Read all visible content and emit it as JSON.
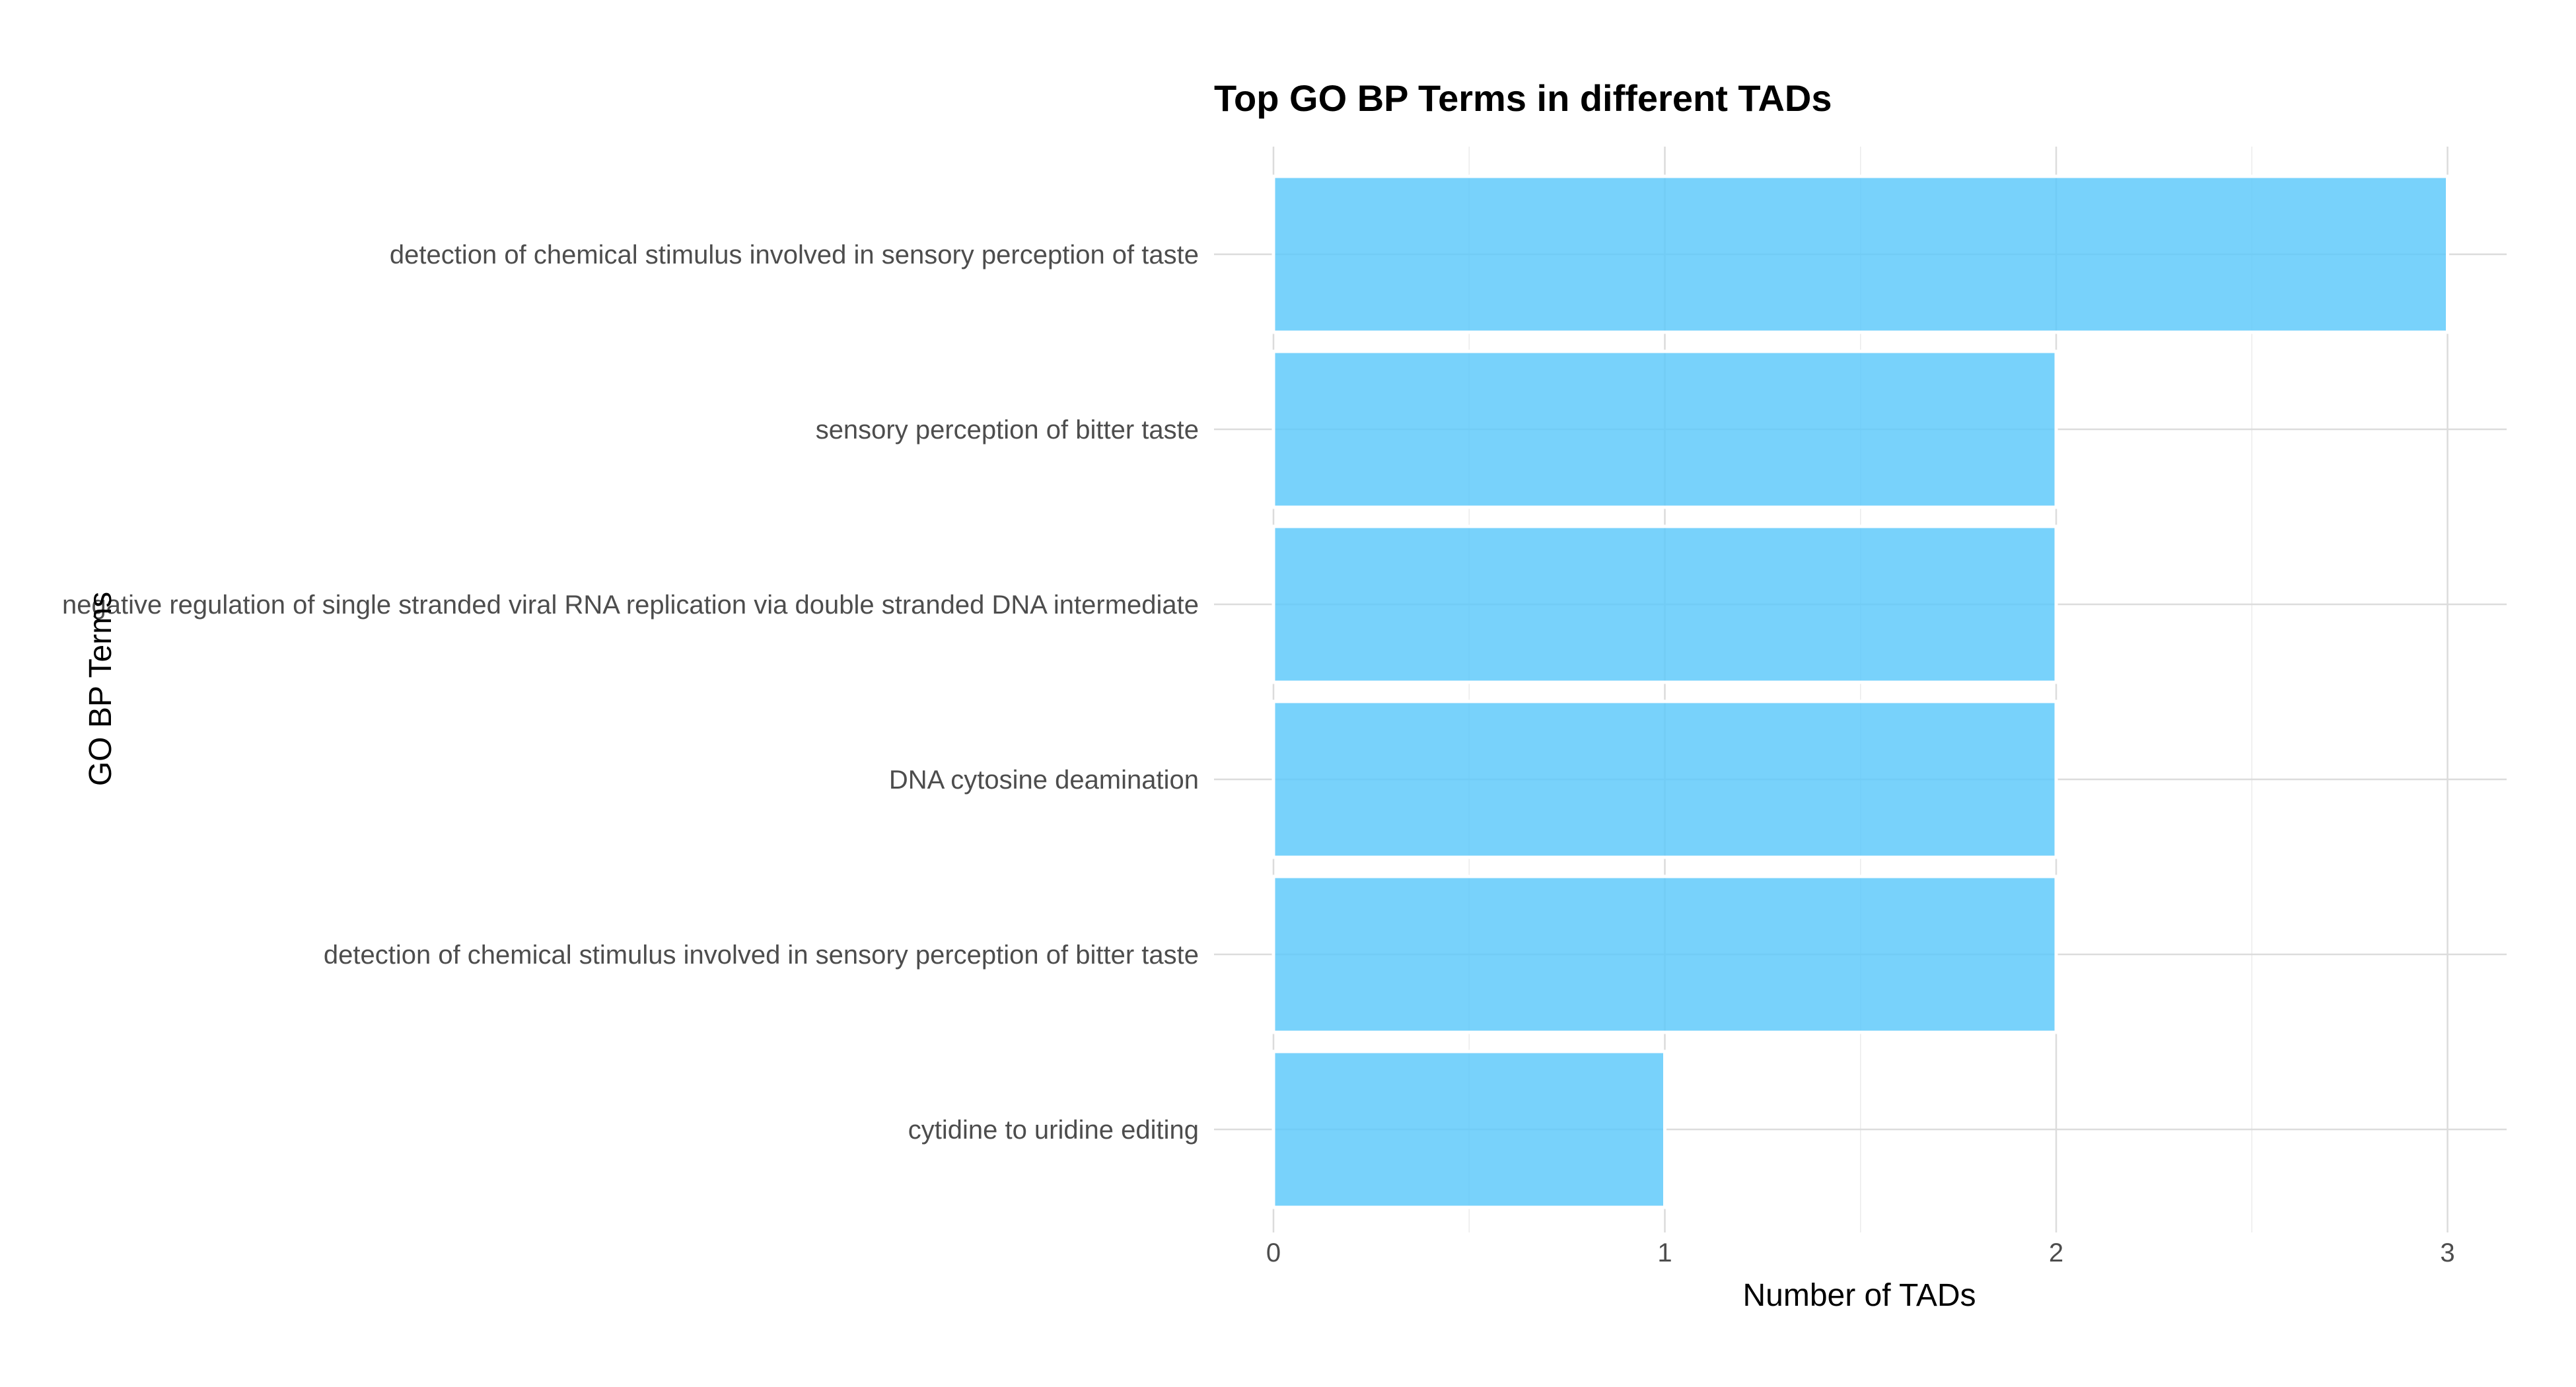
{
  "chart_data": {
    "type": "bar",
    "orientation": "horizontal",
    "title": "Top GO BP Terms in different TADs",
    "xlabel": "Number of TADs",
    "ylabel": "GO BP Terms",
    "categories": [
      "detection of chemical stimulus involved in sensory perception of taste",
      "sensory perception of bitter taste",
      "negative regulation of single stranded viral RNA replication via double stranded DNA intermediate",
      "DNA cytosine deamination",
      "detection of chemical stimulus involved in sensory perception of bitter taste",
      "cytidine to uridine editing"
    ],
    "values": [
      3,
      2,
      2,
      2,
      2,
      1
    ],
    "x_ticks": [
      0,
      1,
      2,
      3
    ],
    "xlim": [
      0,
      3.15
    ],
    "bar_color": "#5AC8FA",
    "grid": true,
    "legend": "none"
  }
}
